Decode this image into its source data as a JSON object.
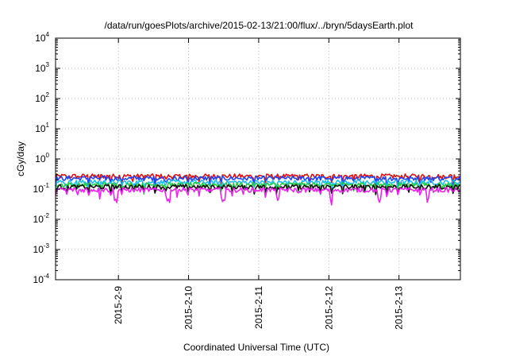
{
  "chart_data": {
    "type": "line",
    "title": "/data/run/goesPlots/archive/2015-02-13/21:00/flux/../bryn/5daysEarth.plot",
    "xlabel": "Coordinated Universal Time (UTC)",
    "ylabel": "cGy/day",
    "yscale": "log",
    "ylim": [
      0.0001,
      10000
    ],
    "y_ticks": [
      {
        "base": "10",
        "exp": "-4",
        "value": 0.0001
      },
      {
        "base": "10",
        "exp": "-3",
        "value": 0.001
      },
      {
        "base": "10",
        "exp": "-2",
        "value": 0.01
      },
      {
        "base": "10",
        "exp": "-1",
        "value": 0.1
      },
      {
        "base": "10",
        "exp": "0",
        "value": 1
      },
      {
        "base": "10",
        "exp": "1",
        "value": 10
      },
      {
        "base": "10",
        "exp": "2",
        "value": 100
      },
      {
        "base": "10",
        "exp": "3",
        "value": 1000
      },
      {
        "base": "10",
        "exp": "4",
        "value": 10000
      }
    ],
    "xlim": [
      "2015-02-08T02:30",
      "2015-02-13T21:00"
    ],
    "x_ticks": [
      {
        "label": "2015-2-9",
        "value": "2015-02-09T00:00"
      },
      {
        "label": "2015-2-10",
        "value": "2015-02-10T00:00"
      },
      {
        "label": "2015-2-11",
        "value": "2015-02-11T00:00"
      },
      {
        "label": "2015-2-12",
        "value": "2015-02-12T00:00"
      },
      {
        "label": "2015-2-13",
        "value": "2015-02-13T00:00"
      }
    ],
    "grid": true,
    "series": [
      {
        "color": "#dd1111",
        "approx_level": 0.27
      },
      {
        "color": "#2244ee",
        "approx_level": 0.23
      },
      {
        "color": "#22bbee",
        "approx_level": 0.17
      },
      {
        "color": "#22cc44",
        "approx_level": 0.14
      },
      {
        "color": "#111111",
        "approx_level": 0.12
      },
      {
        "color": "#ee22ee",
        "approx_level": 0.095
      }
    ]
  }
}
